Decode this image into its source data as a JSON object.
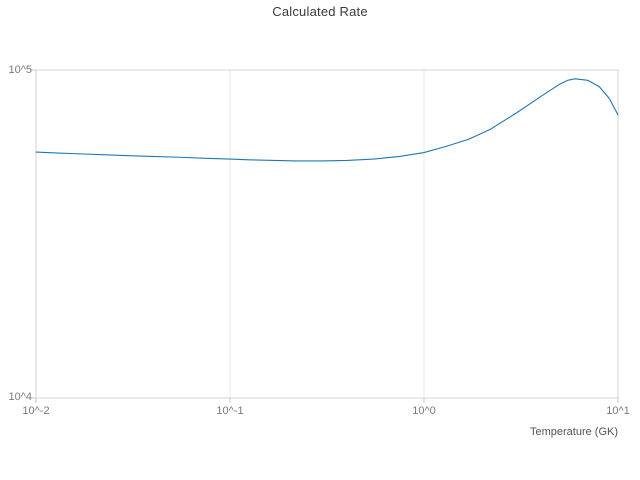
{
  "chart": {
    "title": "Calculated Rate",
    "xlabel": "Temperature (GK)",
    "x_ticks": [
      "10^-2",
      "10^-1",
      "10^0",
      "10^1"
    ],
    "y_ticks": [
      "10^4",
      "10^5"
    ]
  },
  "chart_data": {
    "type": "line",
    "title": "Calculated Rate",
    "xlabel": "Temperature (GK)",
    "ylabel": "",
    "x_scale": "log",
    "y_scale": "log",
    "xlim": [
      0.01,
      10
    ],
    "ylim": [
      10000,
      100000
    ],
    "grid": true,
    "legend": "none",
    "line_color": "#1f77b4",
    "grid_color": "#e8e8e8",
    "frame_color": "#d5d5d5",
    "tick_color": "#c8c8c8",
    "x": [
      0.01,
      0.013,
      0.017,
      0.022,
      0.03,
      0.04,
      0.055,
      0.075,
      0.1,
      0.13,
      0.17,
      0.22,
      0.3,
      0.4,
      0.55,
      0.75,
      1.0,
      1.3,
      1.7,
      2.2,
      3.0,
      4.0,
      5.0,
      5.5,
      6.0,
      7.0,
      8.0,
      9.0,
      10.0
    ],
    "y": [
      56200,
      55800,
      55500,
      55200,
      54800,
      54500,
      54200,
      53800,
      53500,
      53200,
      53000,
      52800,
      52800,
      53000,
      53500,
      54500,
      56000,
      58500,
      61500,
      66000,
      74000,
      83000,
      90500,
      93000,
      94000,
      93000,
      89000,
      82000,
      73000
    ]
  }
}
